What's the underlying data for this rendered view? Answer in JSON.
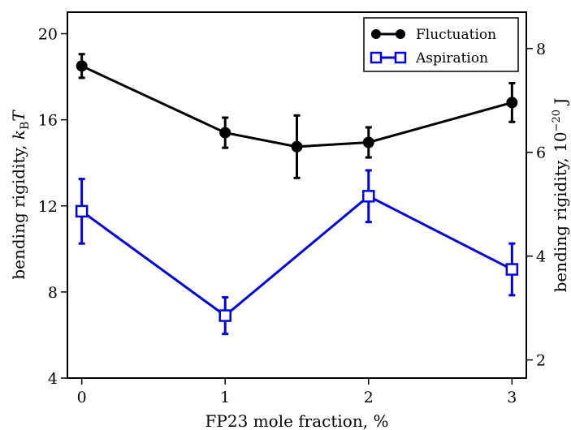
{
  "chart_data": {
    "type": "line",
    "x": [
      0,
      1,
      1.5,
      2,
      3
    ],
    "xticks": [
      0,
      1,
      2,
      3
    ],
    "xlim": [
      -0.1,
      3.1
    ],
    "xlabel": "FP23 mole fraction, %",
    "ylabel_left": {
      "text": "bending rigidity, ",
      "unit_sym": "k",
      "unit_sub": "B",
      "unit_tail": "T"
    },
    "ylim_left": [
      4,
      21
    ],
    "yticks_left": [
      4,
      8,
      12,
      16,
      20
    ],
    "ylabel_right": {
      "text": "bending rigidity, 10",
      "exp": "−20",
      "unit": " J"
    },
    "ylim_right": [
      1.65,
      8.7
    ],
    "yticks_right": [
      2,
      4,
      6,
      8
    ],
    "series": [
      {
        "name": "Fluctuation",
        "axis": "left",
        "color": "#000000",
        "marker": "filled-circle",
        "x": [
          0,
          1,
          1.5,
          2,
          3
        ],
        "y": [
          18.5,
          15.4,
          14.75,
          14.95,
          16.8
        ],
        "err": [
          0.55,
          0.7,
          1.45,
          0.7,
          0.9
        ]
      },
      {
        "name": "Aspiration",
        "axis": "left",
        "color": "#0000e0",
        "marker": "open-square",
        "x": [
          0,
          1,
          2,
          3
        ],
        "y": [
          11.75,
          6.9,
          12.45,
          9.05
        ],
        "err": [
          1.5,
          0.85,
          1.2,
          1.2
        ]
      }
    ],
    "legend": {
      "position": "top-right"
    }
  }
}
